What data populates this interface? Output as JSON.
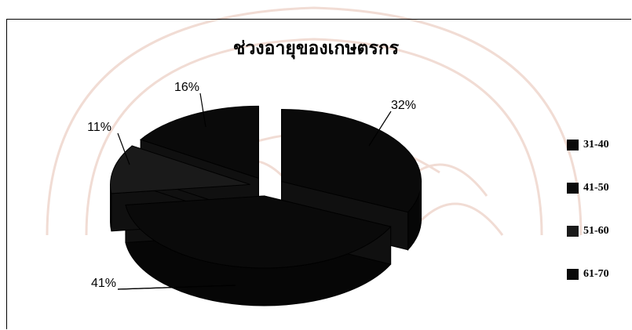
{
  "chart_data": {
    "type": "pie",
    "title": "ช่วงอายุของเกษตรกร",
    "categories": [
      "31-40",
      "41-50",
      "51-60",
      "61-70"
    ],
    "values": [
      32,
      41,
      11,
      16
    ],
    "value_labels": [
      "32%",
      "41%",
      "11%",
      "16%"
    ],
    "three_d": true,
    "exploded": true,
    "legend_position": "right",
    "colors": [
      "#0a0a0a",
      "#0a0a0a",
      "#1a1a1a",
      "#0a0a0a"
    ]
  }
}
